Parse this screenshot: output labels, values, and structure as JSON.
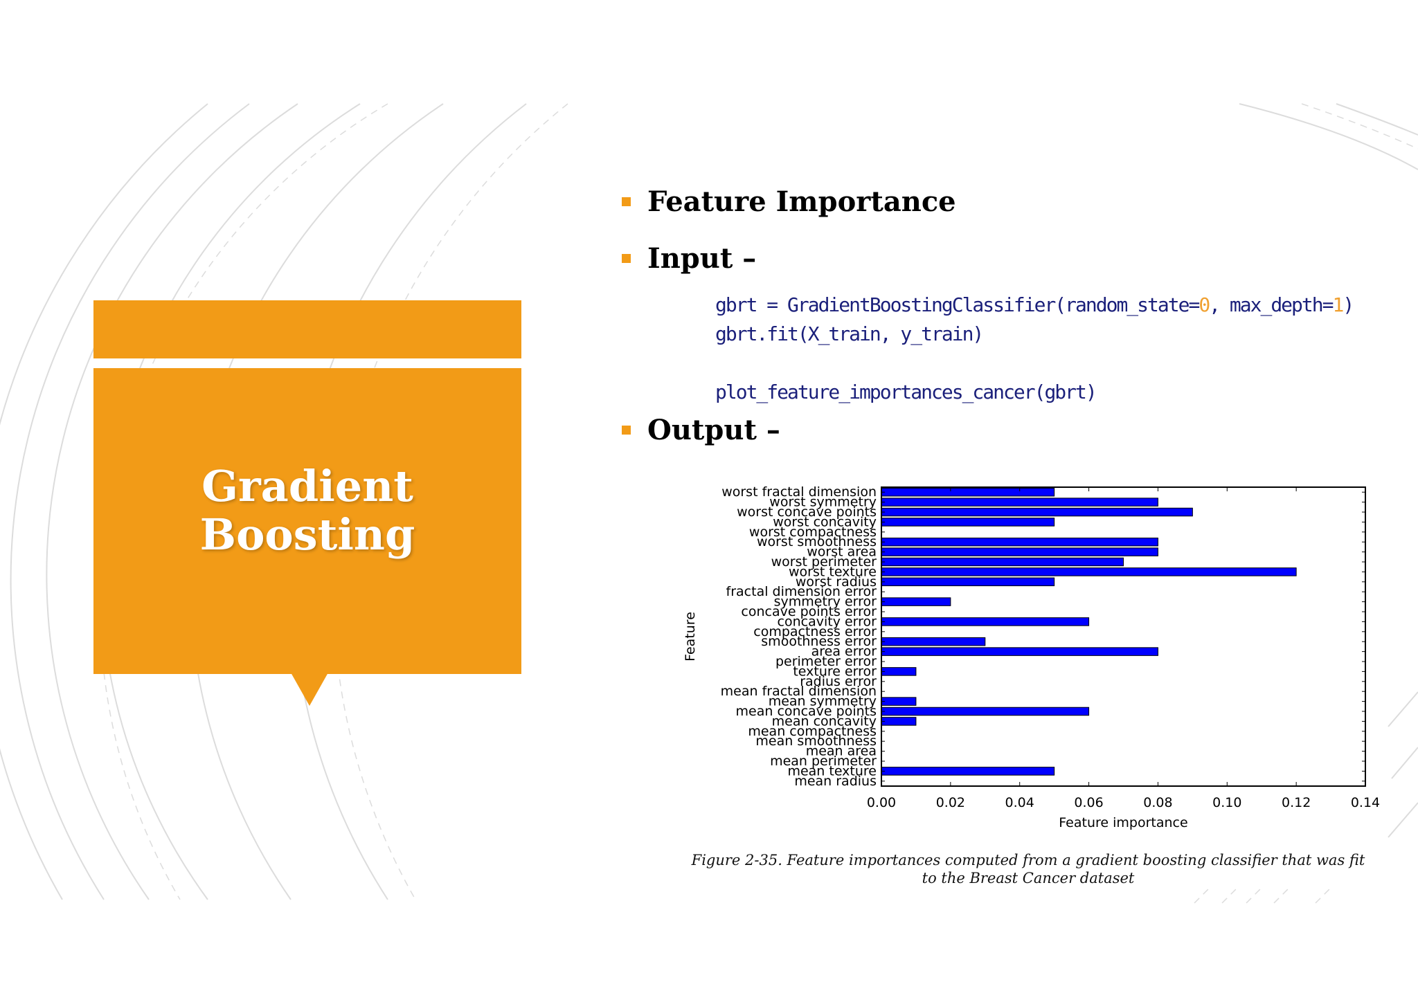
{
  "slide": {
    "title": "Gradient Boosting",
    "bullets": [
      "Feature Importance",
      "Input –",
      "Output –"
    ],
    "caption": "Figure 2-35. Feature importances computed from a gradient boosting classifier that was fit to the Breast Cancer dataset",
    "accent": "#F29B17"
  },
  "code": {
    "line1": {
      "pre": "gbrt = GradientBoostingClassifier(random_state=",
      "n1": "0",
      "mid": ", max_depth=",
      "n2": "1",
      "post": ")"
    },
    "line2": "gbrt.fit(X_train, y_train)",
    "line3": "plot_feature_importances_cancer(gbrt)"
  },
  "chart_data": {
    "type": "bar",
    "orientation": "horizontal",
    "categories": [
      "mean radius",
      "mean texture",
      "mean perimeter",
      "mean area",
      "mean smoothness",
      "mean compactness",
      "mean concavity",
      "mean concave points",
      "mean symmetry",
      "mean fractal dimension",
      "radius error",
      "texture error",
      "perimeter error",
      "area error",
      "smoothness error",
      "compactness error",
      "concavity error",
      "concave points error",
      "symmetry error",
      "fractal dimension error",
      "worst radius",
      "worst texture",
      "worst perimeter",
      "worst area",
      "worst smoothness",
      "worst compactness",
      "worst concavity",
      "worst concave points",
      "worst symmetry",
      "worst fractal dimension"
    ],
    "values": [
      0.0,
      0.05,
      0.0,
      0.0,
      0.0,
      0.0,
      0.01,
      0.06,
      0.01,
      0.0,
      0.0,
      0.01,
      0.0,
      0.08,
      0.03,
      0.0,
      0.06,
      0.0,
      0.02,
      0.0,
      0.05,
      0.12,
      0.07,
      0.08,
      0.08,
      0.0,
      0.05,
      0.09,
      0.08,
      0.05
    ],
    "xlabel": "Feature importance",
    "ylabel": "Feature",
    "xlim": [
      0,
      0.14
    ],
    "xticks": [
      "0.00",
      "0.02",
      "0.04",
      "0.06",
      "0.08",
      "0.10",
      "0.12",
      "0.14"
    ],
    "bar_color": "#0000FF",
    "grid": false
  }
}
